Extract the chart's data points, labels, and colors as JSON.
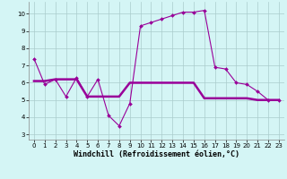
{
  "x": [
    0,
    1,
    2,
    3,
    4,
    5,
    6,
    7,
    8,
    9,
    10,
    11,
    12,
    13,
    14,
    15,
    16,
    17,
    18,
    19,
    20,
    21,
    22,
    23
  ],
  "y_line1": [
    7.4,
    5.9,
    6.2,
    5.2,
    6.3,
    5.2,
    6.2,
    4.1,
    3.5,
    4.8,
    9.3,
    9.5,
    9.7,
    9.9,
    10.1,
    10.1,
    10.2,
    6.9,
    6.8,
    6.0,
    5.9,
    5.5,
    5.0,
    5.0
  ],
  "y_line2": [
    6.1,
    6.1,
    6.2,
    6.2,
    6.2,
    5.2,
    5.2,
    5.2,
    5.2,
    6.0,
    6.0,
    6.0,
    6.0,
    6.0,
    6.0,
    6.0,
    5.1,
    5.1,
    5.1,
    5.1,
    5.1,
    5.0,
    5.0,
    5.0
  ],
  "line_color": "#990099",
  "bg_color": "#d4f5f5",
  "grid_color": "#aacccc",
  "xlabel": "Windchill (Refroidissement éolien,°C)",
  "ylabel_ticks": [
    3,
    4,
    5,
    6,
    7,
    8,
    9,
    10
  ],
  "xlabel_ticks": [
    0,
    1,
    2,
    3,
    4,
    5,
    6,
    7,
    8,
    9,
    10,
    11,
    12,
    13,
    14,
    15,
    16,
    17,
    18,
    19,
    20,
    21,
    22,
    23
  ],
  "ylim": [
    2.7,
    10.7
  ],
  "xlim": [
    -0.5,
    23.5
  ],
  "axis_fontsize": 5.5,
  "tick_fontsize": 5.0,
  "xlabel_fontsize": 6.0
}
